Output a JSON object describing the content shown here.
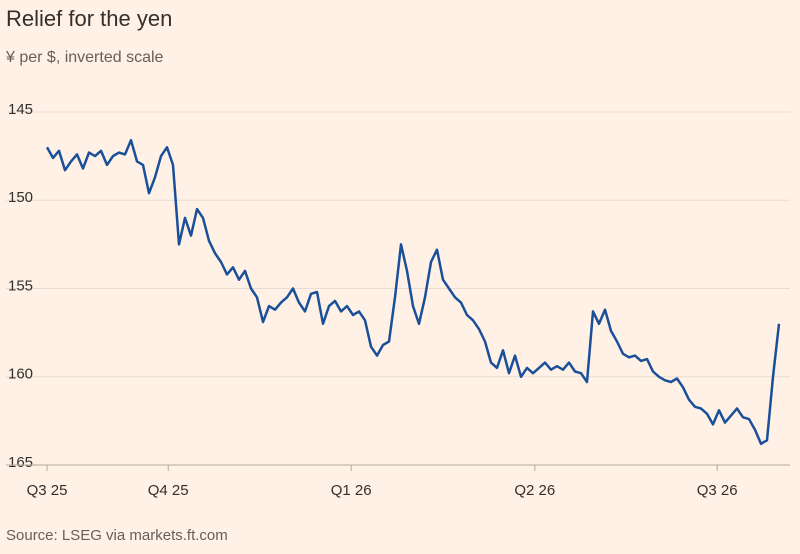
{
  "chart_data": {
    "type": "line",
    "title": "Relief for the yen",
    "subtitle": "¥ per $, inverted scale",
    "source": "Source: LSEG via markets.ft.com",
    "series": [
      {
        "name": "¥ per $",
        "color": "#1a4f9a",
        "values": [
          147.0,
          147.6,
          147.2,
          148.3,
          147.8,
          147.4,
          148.2,
          147.3,
          147.5,
          147.2,
          148.0,
          147.5,
          147.3,
          147.4,
          146.6,
          147.8,
          148.0,
          149.6,
          148.7,
          147.5,
          147.0,
          148.0,
          152.5,
          151.0,
          152.0,
          150.5,
          151.0,
          152.3,
          153.0,
          153.5,
          154.2,
          153.8,
          154.5,
          154.0,
          155.0,
          155.5,
          156.9,
          156.0,
          156.2,
          155.8,
          155.5,
          155.0,
          155.8,
          156.3,
          155.3,
          155.2,
          157.0,
          156.0,
          155.7,
          156.3,
          156.0,
          156.5,
          156.3,
          156.8,
          158.3,
          158.8,
          158.2,
          158.0,
          155.5,
          152.5,
          154.0,
          156.0,
          157.0,
          155.5,
          153.5,
          152.8,
          154.5,
          155.0,
          155.5,
          155.8,
          156.5,
          156.8,
          157.3,
          158.0,
          159.2,
          159.5,
          158.5,
          159.8,
          158.8,
          160.0,
          159.5,
          159.8,
          159.5,
          159.2,
          159.6,
          159.4,
          159.6,
          159.2,
          159.7,
          159.8,
          160.3,
          156.3,
          157.0,
          156.2,
          157.4,
          158.0,
          158.7,
          158.9,
          158.8,
          159.1,
          159.0,
          159.7,
          160.0,
          160.2,
          160.3,
          160.1,
          160.6,
          161.3,
          161.7,
          161.8,
          162.1,
          162.7,
          161.9,
          162.6,
          162.2,
          161.8,
          162.3,
          162.4,
          163.0,
          163.8,
          163.6,
          160.0,
          157.0
        ]
      }
    ],
    "xlim": [
      0,
      122
    ],
    "xticks": [
      {
        "value": 0,
        "label": "Q3 25"
      },
      {
        "value": 20.2,
        "label": "Q4 25"
      },
      {
        "value": 50.7,
        "label": "Q1 26"
      },
      {
        "value": 81.3,
        "label": "Q2 26"
      },
      {
        "value": 111.7,
        "label": "Q3 26"
      }
    ],
    "ylim": [
      145,
      165
    ],
    "yticks": [
      145,
      150,
      155,
      160,
      165
    ],
    "inverted": true,
    "grid": true
  }
}
